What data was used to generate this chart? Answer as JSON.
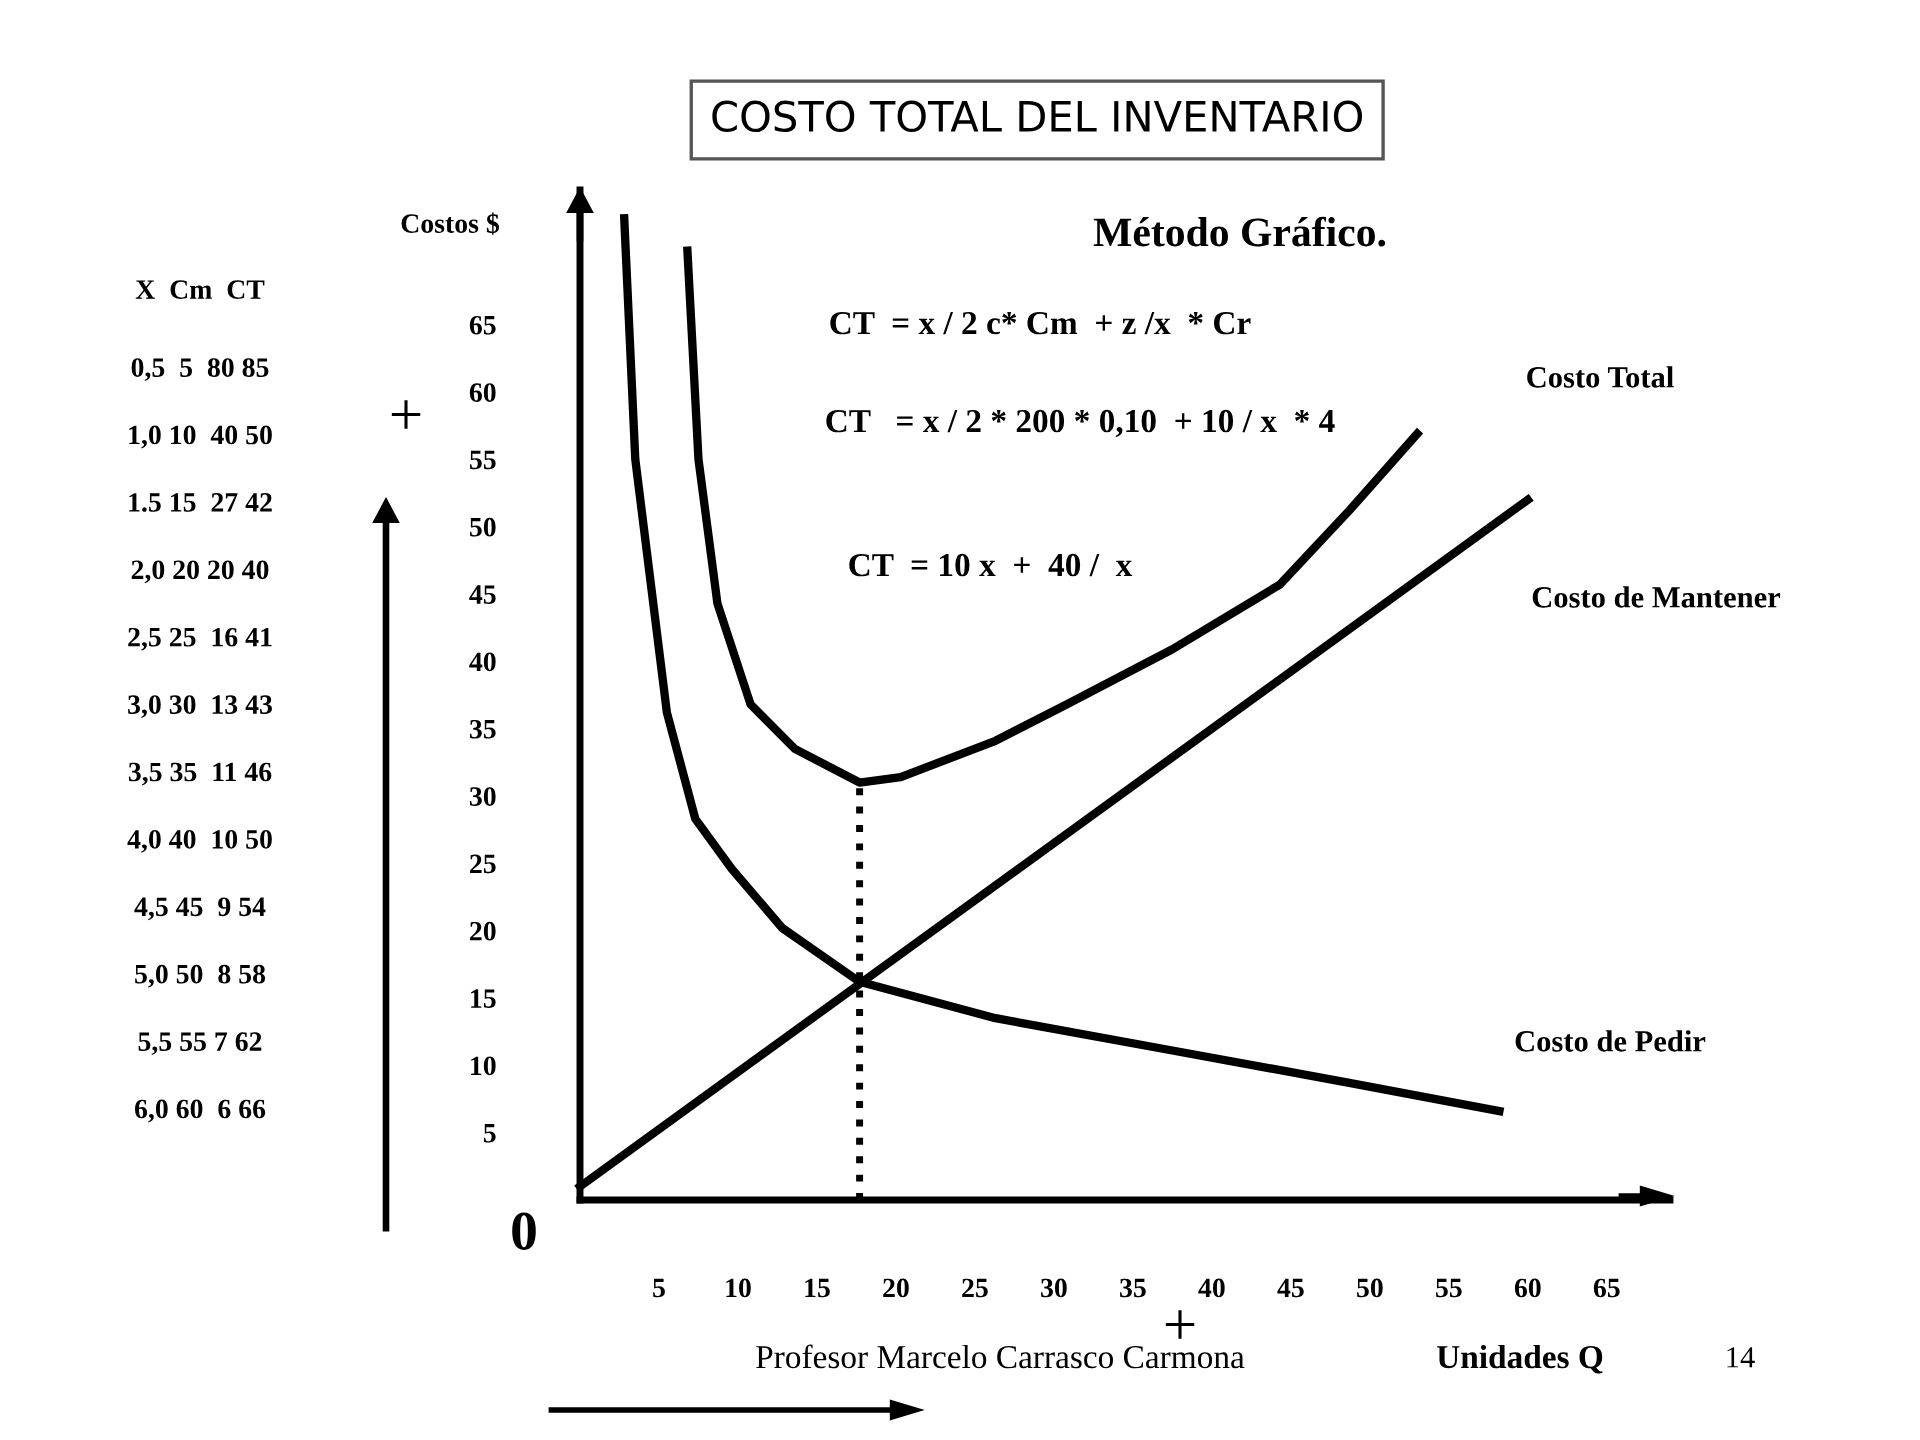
{
  "chart_data": {
    "type": "line",
    "title": "COSTO TOTAL DEL INVENTARIO",
    "subtitle": "Método Gráfico.",
    "xlabel": "Unidades Q",
    "ylabel": "Costos $",
    "xlim": [
      0,
      69
    ],
    "ylim": [
      0,
      75
    ],
    "xticks": [
      5,
      10,
      15,
      20,
      25,
      30,
      35,
      40,
      45,
      50,
      55,
      60,
      65
    ],
    "yticks": [
      5,
      10,
      15,
      20,
      25,
      30,
      35,
      40,
      45,
      50,
      55,
      60,
      65
    ],
    "grid": false,
    "legend": false,
    "marker": "none",
    "line_style": "solid",
    "series": [
      {
        "name": "Costo Total",
        "color": "#000000",
        "x": [
          6.8,
          7.5,
          8.7,
          10.8,
          13.6,
          17.7,
          20.3,
          26.3,
          30.8,
          37.5,
          44.3,
          48.7,
          53.0
        ],
        "values": [
          70.5,
          55,
          44.3,
          36.8,
          33.5,
          31.0,
          31.4,
          34.1,
          36.8,
          40.9,
          45.7,
          51.2,
          56.9
        ]
      },
      {
        "name": "Costo de Mantener",
        "color": "#000000",
        "x": [
          0,
          60
        ],
        "values": [
          1,
          52
        ]
      },
      {
        "name": "Costo de Pedir",
        "color": "#000000",
        "x": [
          2.8,
          3.5,
          5.5,
          7.3,
          9.6,
          12.8,
          17.7,
          26.3,
          37.5,
          48.7,
          58.2
        ],
        "values": [
          72.9,
          55,
          36.2,
          28.3,
          24.6,
          20.2,
          16.2,
          13.5,
          11.1,
          8.7,
          6.6
        ]
      }
    ],
    "ref_lines": [
      {
        "axis": "x",
        "value": 17.7,
        "label": null,
        "color": "#000000",
        "line_style": "dotted"
      }
    ],
    "annotations": [
      "CT  = x / 2 c* Cm  + z /x  * Cr",
      "CT   = x / 2 * 200 * 0,10  + 10 / x  * 4",
      "CT  = 10 x  +  40 /  x",
      "X  Cm  CT",
      "0,5  5  80 85",
      "1,0 10  40 50",
      "1.5 15  27 42",
      "2,0 20 20 40",
      "2,5 25  16 41",
      "3,0 30  13 43",
      "3,5 35  11 46",
      "4,0 40  10 50",
      "4,5 45  9 54",
      "5,0 50  8 58",
      "5,5 55 7 62",
      "6,0 60  6 66",
      "Profesor Marcelo Carrasco Carmona",
      "14",
      "+",
      "+",
      "0"
    ]
  }
}
